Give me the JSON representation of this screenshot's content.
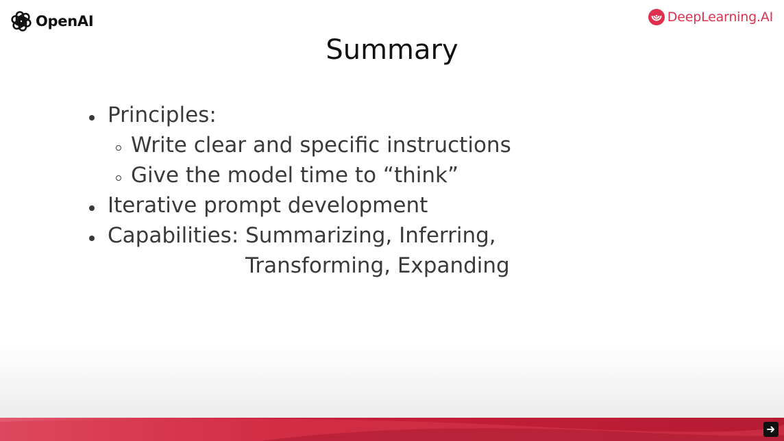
{
  "header": {
    "left_logo_text": "OpenAI",
    "right_logo_text": "DeepLearning.AI"
  },
  "slide": {
    "title": "Summary",
    "bullets": [
      {
        "level": 1,
        "text": "Principles:"
      },
      {
        "level": 2,
        "text": "Write clear and specific instructions"
      },
      {
        "level": 2,
        "text": "Give the model time to “think”"
      },
      {
        "level": 1,
        "text": "Iterative prompt development"
      },
      {
        "level": 1,
        "text": "Capabilities: Summarizing, Inferring,"
      },
      {
        "level": 0,
        "text": "Transforming, Expanding"
      }
    ]
  },
  "footer": {
    "next_icon": "arrow-right-icon"
  },
  "colors": {
    "brand_red": "#e0304e",
    "band_dark": "#c8203a",
    "band_light": "#e45a70",
    "body_text": "#3a3a3a"
  }
}
